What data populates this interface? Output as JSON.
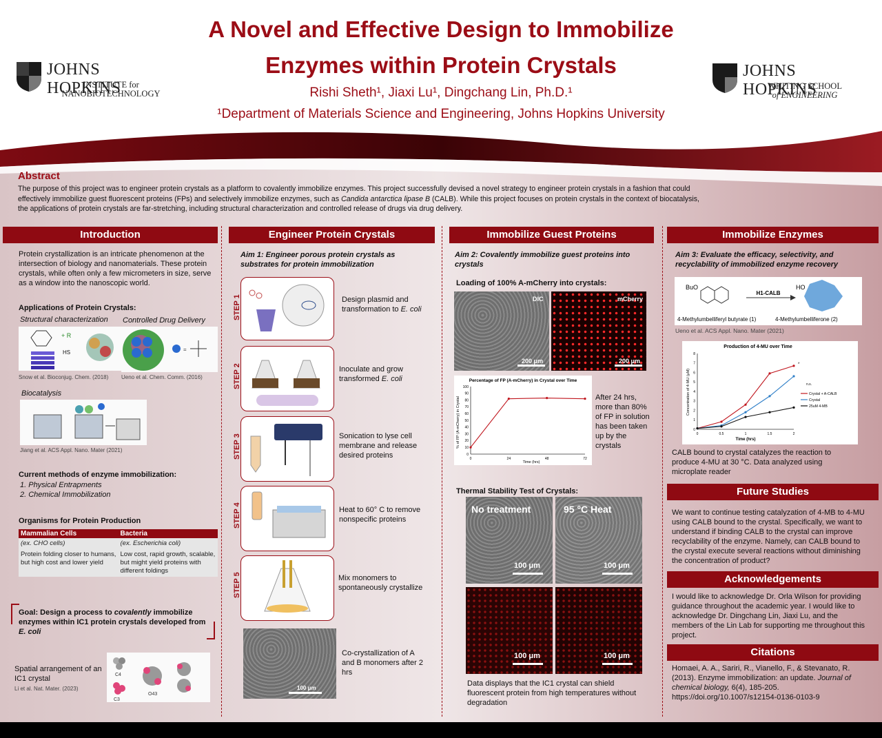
{
  "header": {
    "title_line1": "A Novel and Effective Design to Immobilize",
    "title_line2": "Enzymes within Protein Crystals",
    "authors": "Rishi Sheth¹, Jiaxi Lu¹, Dingchang Lin, Ph.D.¹",
    "affiliation": "¹Department of Materials Science and Engineering, Johns Hopkins University",
    "logo_left": {
      "name": "JOHNS HOPKINS",
      "sub1": "INSTITUTE for",
      "sub2": "NANOBIOTECHNOLOGY"
    },
    "logo_right": {
      "name": "JOHNS HOPKINS",
      "sub1": "WHITING SCHOOL",
      "sub2": "of ENGINEERING"
    }
  },
  "abstract": {
    "heading": "Abstract",
    "text_a": "The purpose of this project was to engineer protein crystals as a platform to covalently immobilize enzymes. This project successfully devised a novel strategy to engineer protein crystals in a fashion that could effectively immobilize guest fluorescent proteins (FPs) and selectively immobilize enzymes, such as ",
    "text_italic": "Candida antarctica lipase B",
    "text_b": " (CALB). While this project focuses on protein crystals in the context of biocatalysis, the applications of protein crystals are far-stretching, including structural characterization and controlled release of drugs via drug delivery."
  },
  "intro": {
    "heading": "Introduction",
    "para": "Protein crystallization is an intricate phenomenon at the intersection of biology and nanomaterials. These protein crystals, while often only a few micrometers in size, serve as a window into the nanoscopic world.",
    "apps_heading": "Applications of Protein Crystals:",
    "app1": "Structural characterization",
    "app2": "Controlled Drug Delivery",
    "cite1": "Snow et al. Bioconjug. Chem. (2018)",
    "cite2": "Ueno et al. Chem. Comm. (2016)",
    "app3": "Biocatalysis",
    "cite3": "Jiang et al. ACS Appl. Nano. Mater (2021)",
    "methods_heading": "Current methods of enzyme immobilization",
    "method1": "1.  Physical Entrapments",
    "method2": "2.  Chemical Immobilization",
    "orgs_heading": "Organisms for Protein Production",
    "table": {
      "col1": "Mammalian Cells",
      "col2": "Bacteria",
      "r1c1": "(ex. CHO cells)",
      "r1c2": "(ex. Escherichia coli)",
      "r2c1": "Protein folding closer to humans, but high cost and lower yield",
      "r2c2": "Low cost, rapid growth, scalable, but might yield proteins with different foldings"
    },
    "goal_a": "Goal: Design a process to ",
    "goal_italic": "covalently",
    "goal_b": " immobilize enzymes within IC1 protein crystals developed from ",
    "goal_ecoli": "E. coli",
    "spatial": "Spatial arrangement of an IC1 crystal",
    "cite4": "Li et al. Nat. Mater. (2023)",
    "fig_labels": {
      "c4": "C4",
      "c3": "C3",
      "o43": "O43",
      "r": "+ R",
      "hs": "HS"
    }
  },
  "engineer": {
    "heading": "Engineer Protein Crystals",
    "aim": "Aim 1: Engineer porous protein crystals as substrates for protein immobilization",
    "steps": [
      {
        "label": "STEP 1",
        "text_a": "Design plasmid and transformation to ",
        "text_i": "E. coli"
      },
      {
        "label": "STEP 2",
        "text_a": "Inoculate and grow transformed ",
        "text_i": "E. coli"
      },
      {
        "label": "STEP 3",
        "text_a": "Sonication to lyse cell membrane and release desired proteins",
        "text_i": ""
      },
      {
        "label": "STEP 4",
        "text_a": "Heat to 60° C to remove nonspecific proteins",
        "text_i": ""
      },
      {
        "label": "STEP 5",
        "text_a": "Mix monomers to spontaneously crystallize",
        "text_i": ""
      }
    ],
    "cocrystal": "Co-crystallization of A and B monomers after 2 hrs",
    "scale_bar": "100 μm"
  },
  "guest": {
    "heading": "Immobilize Guest Proteins",
    "aim": "Aim 2: Covalently immobilize guest proteins into crystals",
    "loading": "Loading of 100% A-mCherry into crystals:",
    "dic": "DIC",
    "mcherry": "mCherry",
    "scale200": "200 μm",
    "after24": "After 24 hrs, more than 80% of FP in solution has been taken up by the crystals",
    "thermal": "Thermal Stability Test of Crystals:",
    "notreat": "No treatment",
    "heat": "95 °C Heat",
    "scale100": "100 μm",
    "caption": "Data displays that the IC1 crystal can shield fluorescent protein from high temperatures without degradation"
  },
  "enzymes": {
    "heading": "Immobilize Enzymes",
    "aim": "Aim 3: Evaluate the efficacy, selectivity, and recyclability of immobilized enzyme recovery",
    "reactant": "4-Methylumbelliferyl butyrate (1)",
    "product": "4-Methylumbelliferone (2)",
    "enzyme_label": "H1-CALB",
    "cite": "Ueno et al. ACS Appl. Nano. Mater (2021)",
    "calb_caption": "CALB bound to crystal catalyzes the reaction to produce 4-MU at 30 °C. Data analyzed using microplate reader"
  },
  "future": {
    "heading": "Future Studies",
    "text": "We want to continue testing catalyzation of 4-MB to 4-MU using CALB bound to the crystal. Specifically, we want to understand if binding CALB to the crystal can improve recyclability of the enzyme. Namely, can CALB bound to the crystal execute several reactions without diminishing the concentration of product?"
  },
  "ack": {
    "heading": "Acknowledgements",
    "text": "I would like to acknowledge Dr. Orla Wilson for providing guidance throughout the academic year. I would like to acknowledge Dr. Dingchang Lin, Jiaxi Lu, and the members of the Lin Lab for supporting me throughout this project."
  },
  "citations": {
    "heading": "Citations",
    "text_a": "Homaei, A. A., Sariri, R., Vianello, F., & Stevanato, R. (2013). Enzyme immobilization: an update. ",
    "text_i": "Journal of chemical biology,",
    "text_b": " 6(4), 185-205. https://doi.org/10.1007/s12154-0136-0103-9"
  },
  "chart_data": [
    {
      "type": "line",
      "title": "Percentage of FP (A-mCherry) in Crystal over Time",
      "xlabel": "Time (hrs)",
      "ylabel": "% of FP (A-mCherry) in Crystal",
      "x": [
        0,
        24,
        48,
        72
      ],
      "xticks": [
        "0",
        "24",
        "48",
        "72"
      ],
      "yticks": [
        "0",
        "10",
        "20",
        "30",
        "40",
        "50",
        "60",
        "70",
        "80",
        "90",
        "100"
      ],
      "ylim": [
        0,
        100
      ],
      "series": [
        {
          "values": [
            10,
            82,
            83,
            82
          ],
          "color": "#c0161e"
        }
      ]
    },
    {
      "type": "line",
      "title": "Production of 4-MU over Time",
      "xlabel": "Time (hrs)",
      "ylabel": "Concentration of 4-MU (μM)",
      "x": [
        0,
        0.5,
        1,
        1.5,
        2
      ],
      "xticks": [
        "0",
        "0.5",
        "1",
        "1.5",
        "2"
      ],
      "yticks": [
        "0",
        "1",
        "2",
        "3",
        "4",
        "5",
        "6",
        "7",
        "8"
      ],
      "ylim": [
        0,
        8
      ],
      "legend_position": "right",
      "series": [
        {
          "name": "Crystal + A-CALB",
          "values": [
            0.1,
            0.8,
            2.6,
            5.9,
            6.7
          ],
          "color": "#c0161e"
        },
        {
          "name": "Crystal",
          "values": [
            0.1,
            0.4,
            1.8,
            3.5,
            5.6
          ],
          "color": "#2f7fc8"
        },
        {
          "name": "25uM 4-MB",
          "values": [
            0.1,
            0.3,
            1.3,
            1.8,
            2.3
          ],
          "color": "#111111"
        }
      ],
      "annotations": [
        "*",
        "n.s."
      ]
    }
  ]
}
